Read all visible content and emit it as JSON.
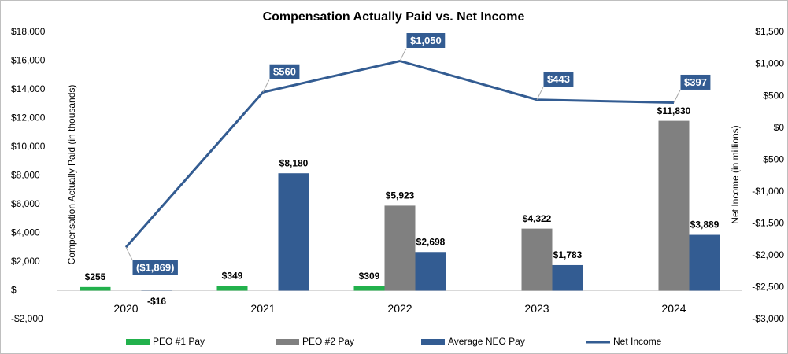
{
  "chart_data": {
    "type": "bar",
    "title": "Compensation Actually Paid vs. Net Income",
    "y_label": "Compensation Actually Paid (in thousands)",
    "y2_label": "Net Income (in millions)",
    "categories": [
      "2020",
      "2021",
      "2022",
      "2023",
      "2024"
    ],
    "series": [
      {
        "name": "PEO #1 Pay",
        "color": "#22b14c",
        "type": "bar",
        "values": [
          255,
          349,
          309,
          null,
          null
        ],
        "value_labels": [
          "$255",
          "$349",
          "$309",
          null,
          null
        ]
      },
      {
        "name": "PEO #2 Pay",
        "color": "#808080",
        "type": "bar",
        "values": [
          null,
          null,
          5923,
          4322,
          11830
        ],
        "value_labels": [
          null,
          null,
          "$5,923",
          "$4,322",
          "$11,830"
        ]
      },
      {
        "name": "Average NEO Pay",
        "color": "#335c92",
        "type": "bar",
        "values": [
          -16,
          8180,
          2698,
          1783,
          3889
        ],
        "value_labels": [
          "-$16",
          "$8,180",
          "$2,698",
          "$1,783",
          "$3,889"
        ]
      },
      {
        "name": "Net Income",
        "color": "#335c92",
        "type": "line",
        "axis": "y2",
        "values": [
          -1869,
          560,
          1050,
          443,
          397
        ],
        "value_labels": [
          "($1,869)",
          "$560",
          "$1,050",
          "$443",
          "$397"
        ]
      }
    ],
    "ylim": [
      -2000,
      18000
    ],
    "yticks": [
      {
        "value": -2000,
        "label": "-$2,000"
      },
      {
        "value": 0,
        "label": "$"
      },
      {
        "value": 2000,
        "label": "$2,000"
      },
      {
        "value": 4000,
        "label": "$4,000"
      },
      {
        "value": 6000,
        "label": "$6,000"
      },
      {
        "value": 8000,
        "label": "$8,000"
      },
      {
        "value": 10000,
        "label": "$10,000"
      },
      {
        "value": 12000,
        "label": "$12,000"
      },
      {
        "value": 14000,
        "label": "$14,000"
      },
      {
        "value": 16000,
        "label": "$16,000"
      },
      {
        "value": 18000,
        "label": "$18,000"
      }
    ],
    "y2lim": [
      -3000,
      1500
    ],
    "y2ticks": [
      {
        "value": -3000,
        "label": "-$3,000"
      },
      {
        "value": -2500,
        "label": "-$2,500"
      },
      {
        "value": -2000,
        "label": "-$2,000"
      },
      {
        "value": -1500,
        "label": "-$1,500"
      },
      {
        "value": -1000,
        "label": "-$1,000"
      },
      {
        "value": -500,
        "label": "-$500"
      },
      {
        "value": 0,
        "label": "$0"
      },
      {
        "value": 500,
        "label": "$500"
      },
      {
        "value": 1000,
        "label": "$1,000"
      },
      {
        "value": 1500,
        "label": "$1,500"
      }
    ],
    "grid": false,
    "legend": "bottom"
  }
}
